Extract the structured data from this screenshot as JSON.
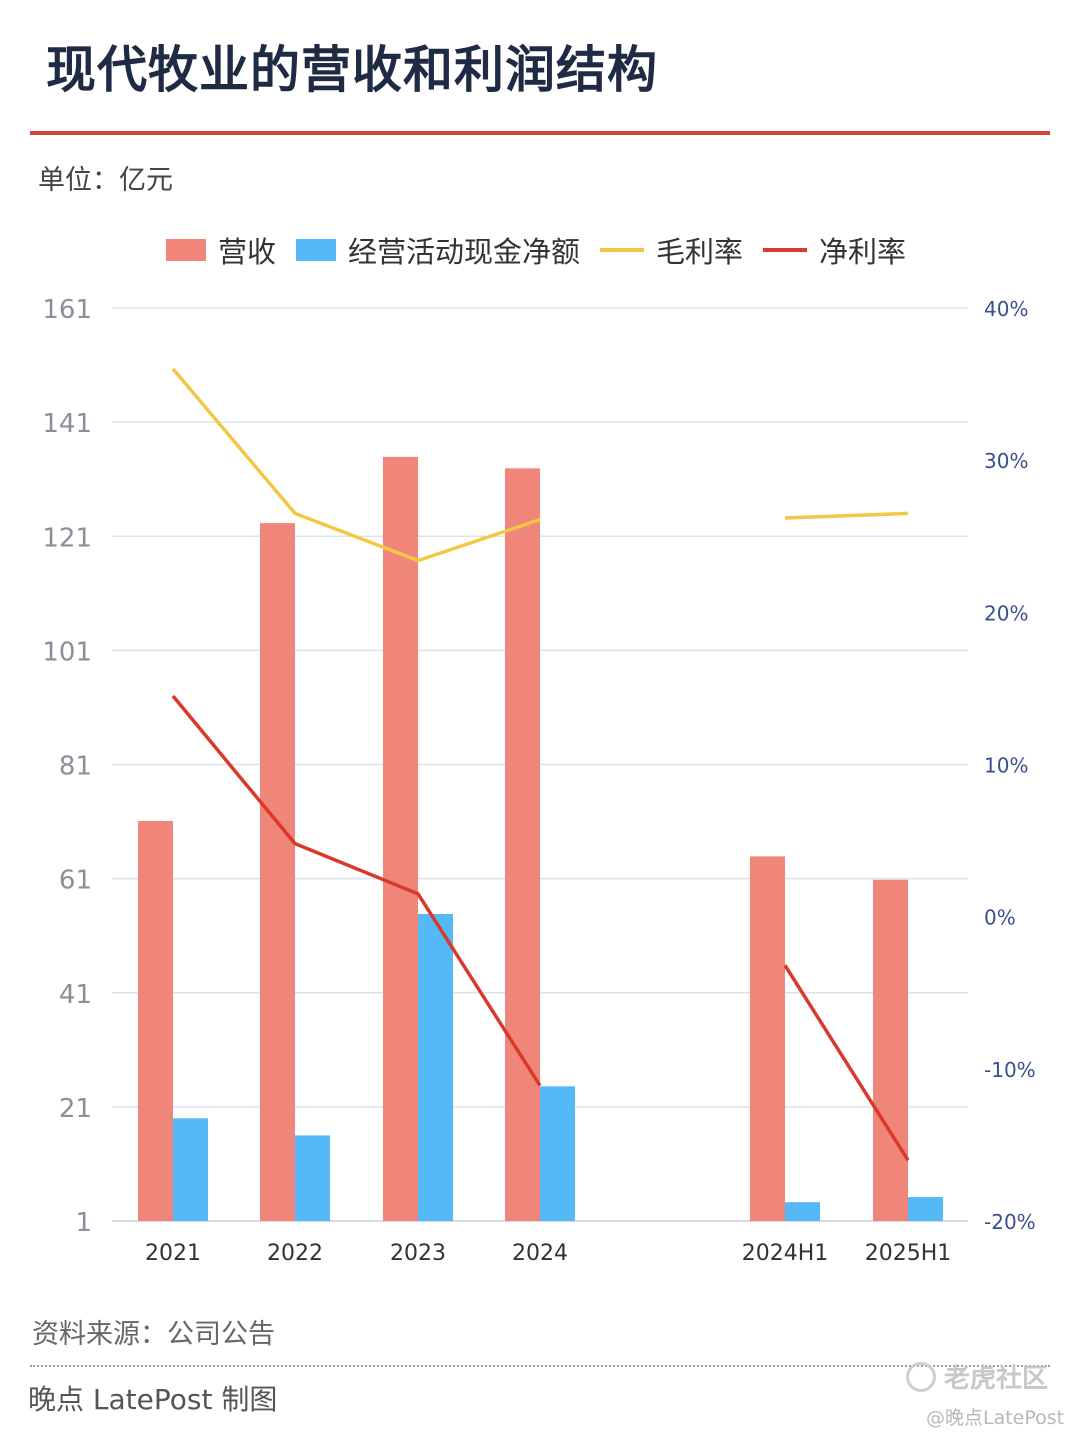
{
  "header": {
    "title": "现代牧业的营收和利润结构",
    "unit": "单位：亿元"
  },
  "legend": [
    {
      "label": "营收",
      "kind": "bar",
      "color": "#f0857a"
    },
    {
      "label": "经营活动现金净额",
      "kind": "bar",
      "color": "#56b9f7"
    },
    {
      "label": "毛利率",
      "kind": "line",
      "color": "#f2c744"
    },
    {
      "label": "净利率",
      "kind": "line",
      "color": "#d9382b"
    }
  ],
  "chart_data": {
    "type": "bar",
    "categories": [
      "2021",
      "2022",
      "2023",
      "2024",
      "2024H1",
      "2025H1"
    ],
    "series": [
      {
        "name": "营收",
        "type": "bar",
        "axis": "left",
        "color": "#f0857a",
        "values": [
          71.1,
          123.3,
          134.9,
          132.9,
          64.9,
          60.8
        ]
      },
      {
        "name": "经营活动现金净额",
        "type": "bar",
        "axis": "left",
        "color": "#56b9f7",
        "values": [
          19,
          16,
          null,
          24.6,
          4.3,
          5.2
        ],
        "values_note": null
      },
      {
        "name": "毛利率",
        "type": "line",
        "axis": "right",
        "color": "#f2c744",
        "values": [
          36.0,
          26.5,
          23.4,
          26.1,
          26.2,
          26.5
        ]
      },
      {
        "name": "净利率",
        "type": "line",
        "axis": "right",
        "color": "#d9382b",
        "values": [
          14.5,
          4.8,
          1.5,
          -11.1,
          -3.2,
          -16.0
        ]
      }
    ],
    "y_left": {
      "ticks": [
        "161",
        "141",
        "121",
        "101",
        "81",
        "61",
        "41",
        "21",
        "1"
      ],
      "range": [
        1,
        161
      ]
    },
    "y_right": {
      "ticks": [
        "40%",
        "30%",
        "20%",
        "10%",
        "0%",
        "-10%",
        "-20%"
      ],
      "range": [
        -20,
        40
      ]
    },
    "grid": true,
    "legend_position": "top"
  },
  "footer": {
    "source": "资料来源：公司公告",
    "credit": "晚点 LatePost 制图"
  },
  "watermarks": {
    "community": "老虎社区",
    "handle": "@晚点LatePost"
  }
}
